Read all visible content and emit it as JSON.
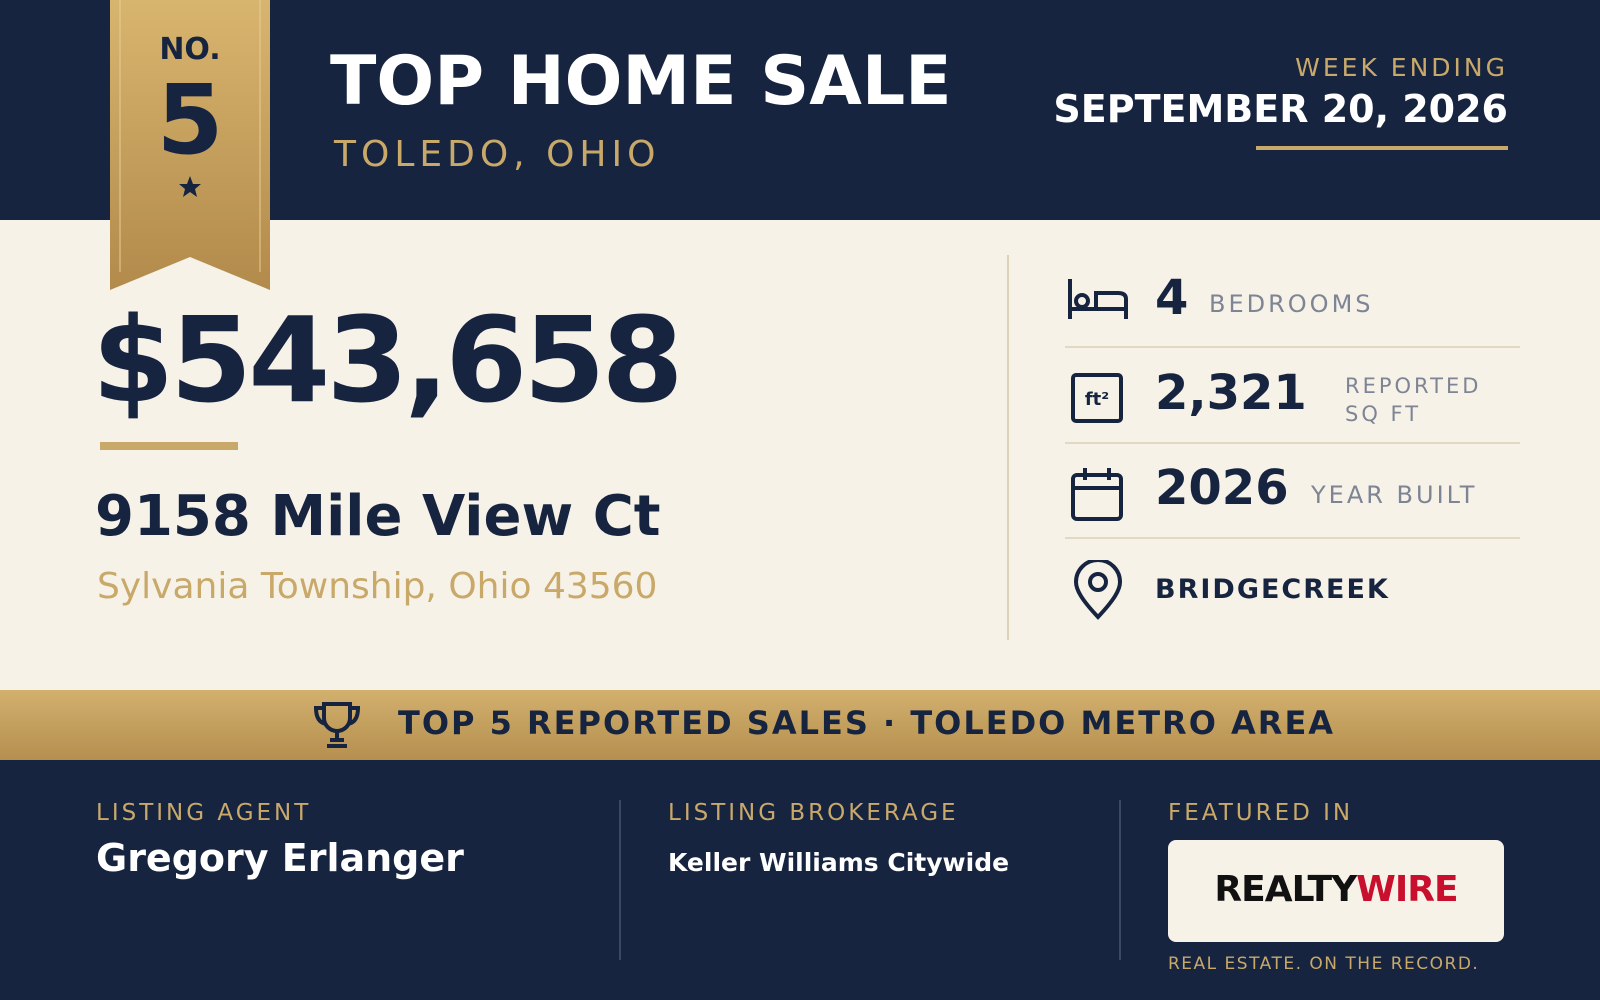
{
  "ribbon": {
    "rank_label": "NO.",
    "rank": "5"
  },
  "header": {
    "title": "TOP HOME SALE",
    "subtitle": "TOLEDO, OHIO",
    "week_label": "WEEK ENDING",
    "week_date": "SEPTEMBER 20, 2026"
  },
  "sale": {
    "price": "$543,658",
    "address": "9158 Mile View Ct",
    "locality": "Sylvania Township, Ohio 43560"
  },
  "stats": [
    {
      "value": "4",
      "label": "BEDROOMS"
    },
    {
      "value": "2,321",
      "label": "REPORTED SQ FT"
    },
    {
      "value": "2026",
      "label": "YEAR BUILT"
    },
    {
      "label": "BRIDGECREEK"
    }
  ],
  "banner": {
    "text": "TOP 5 REPORTED SALES · TOLEDO METRO AREA"
  },
  "footer": {
    "agent_label": "LISTING AGENT",
    "agent": "Gregory Erlanger",
    "brokerage_label": "LISTING BROKERAGE",
    "brokerage": "Keller Williams Citywide",
    "featured_label": "FEATURED IN",
    "logo_part1": "REALTY",
    "logo_part2": "WIRE",
    "tagline": "REAL ESTATE. ON THE RECORD."
  }
}
